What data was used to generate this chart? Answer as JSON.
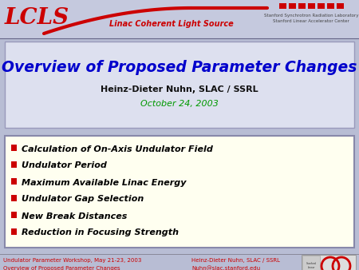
{
  "background_color": "#b8bdd4",
  "header_bg": "#c5c9de",
  "header_line_color": "#cc0000",
  "lcls_text": "LCLS",
  "lcls_color": "#cc0000",
  "header_center_text": "Linac Coherent Light Source",
  "header_right_line1": "Stanford Synchrotron Radiation Laboratory",
  "header_right_line2": "Stanford Linear Accelerator Center",
  "title_box_bg": "#dde0ef",
  "title_text": "Overview of Proposed Parameter Changes",
  "title_color": "#0000cc",
  "subtitle_text": "Heinz-Dieter Nuhn, SLAC / SSRL",
  "subtitle_color": "#111111",
  "date_text": "October 24, 2003",
  "date_color": "#009900",
  "bullet_box_bg": "#fffff0",
  "bullet_box_border": "#8888aa",
  "bullet_color": "#cc0000",
  "bullet_items": [
    "Calculation of On-Axis Undulator Field",
    "Undulator Period",
    "Maximum Available Linac Energy",
    "Undulator Gap Selection",
    "New Break Distances",
    "Reduction in Focusing Strength"
  ],
  "footer_left1": "Undulator Parameter Workshop, May 21-23, 2003",
  "footer_left2": "Overview of Proposed Parameter Changes",
  "footer_right1": "Heinz-Dieter Nuhn, SLAC / SSRL",
  "footer_right2": "Nuhn@slac.stanford.edu",
  "footer_color": "#cc0000"
}
